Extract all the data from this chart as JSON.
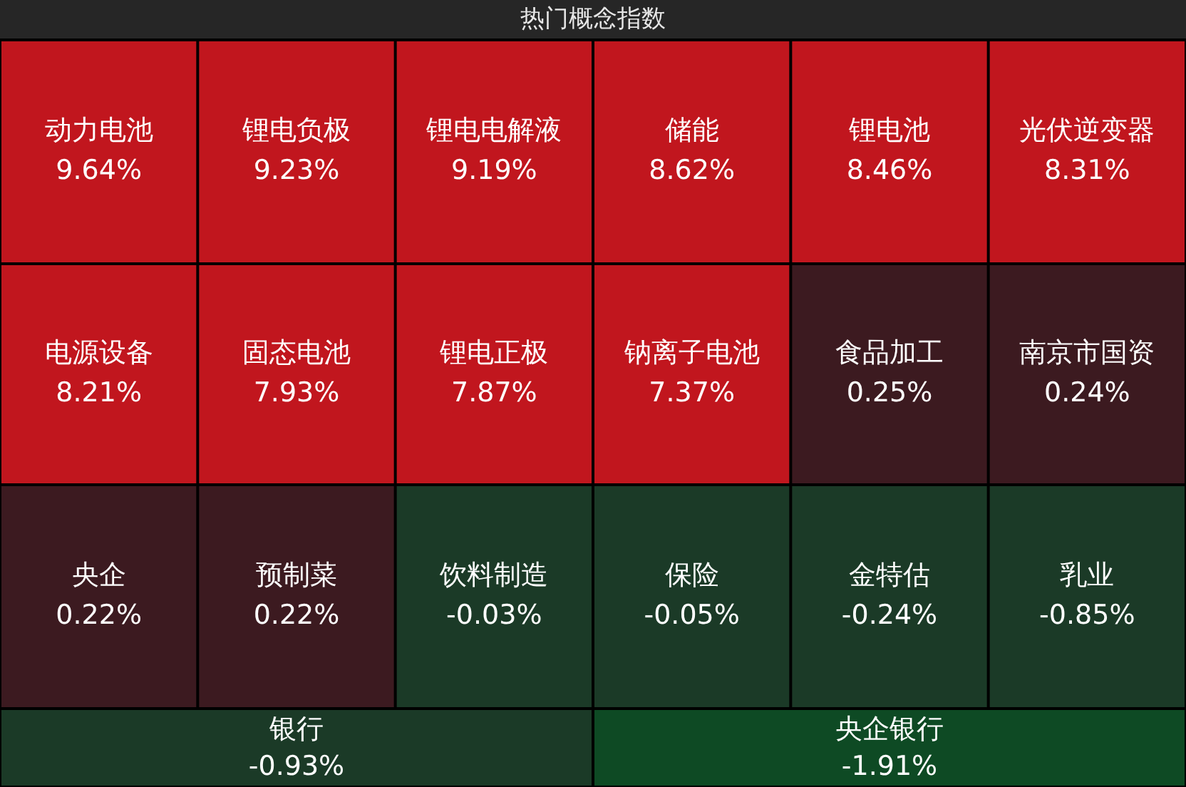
{
  "chart_data": {
    "type": "other",
    "title": "热门概念指数",
    "categories": [
      "动力电池",
      "锂电负极",
      "锂电电解液",
      "储能",
      "锂电池",
      "光伏逆变器",
      "电源设备",
      "固态电池",
      "锂电正极",
      "钠离子电池",
      "食品加工",
      "南京市国资",
      "央企",
      "预制菜",
      "饮料制造",
      "保险",
      "金特估",
      "乳业",
      "银行",
      "央企银行"
    ],
    "values": [
      9.64,
      9.23,
      9.19,
      8.62,
      8.46,
      8.31,
      8.21,
      7.93,
      7.87,
      7.37,
      0.25,
      0.24,
      0.22,
      0.22,
      -0.03,
      -0.05,
      -0.24,
      -0.85,
      -0.93,
      -1.91
    ],
    "value_labels": [
      "9.64%",
      "9.23%",
      "9.19%",
      "8.62%",
      "8.46%",
      "8.31%",
      "8.21%",
      "7.93%",
      "7.87%",
      "7.37%",
      "0.25%",
      "0.24%",
      "0.22%",
      "0.22%",
      "-0.03%",
      "-0.05%",
      "-0.24%",
      "-0.85%",
      "-0.93%",
      "-1.91%"
    ]
  }
}
